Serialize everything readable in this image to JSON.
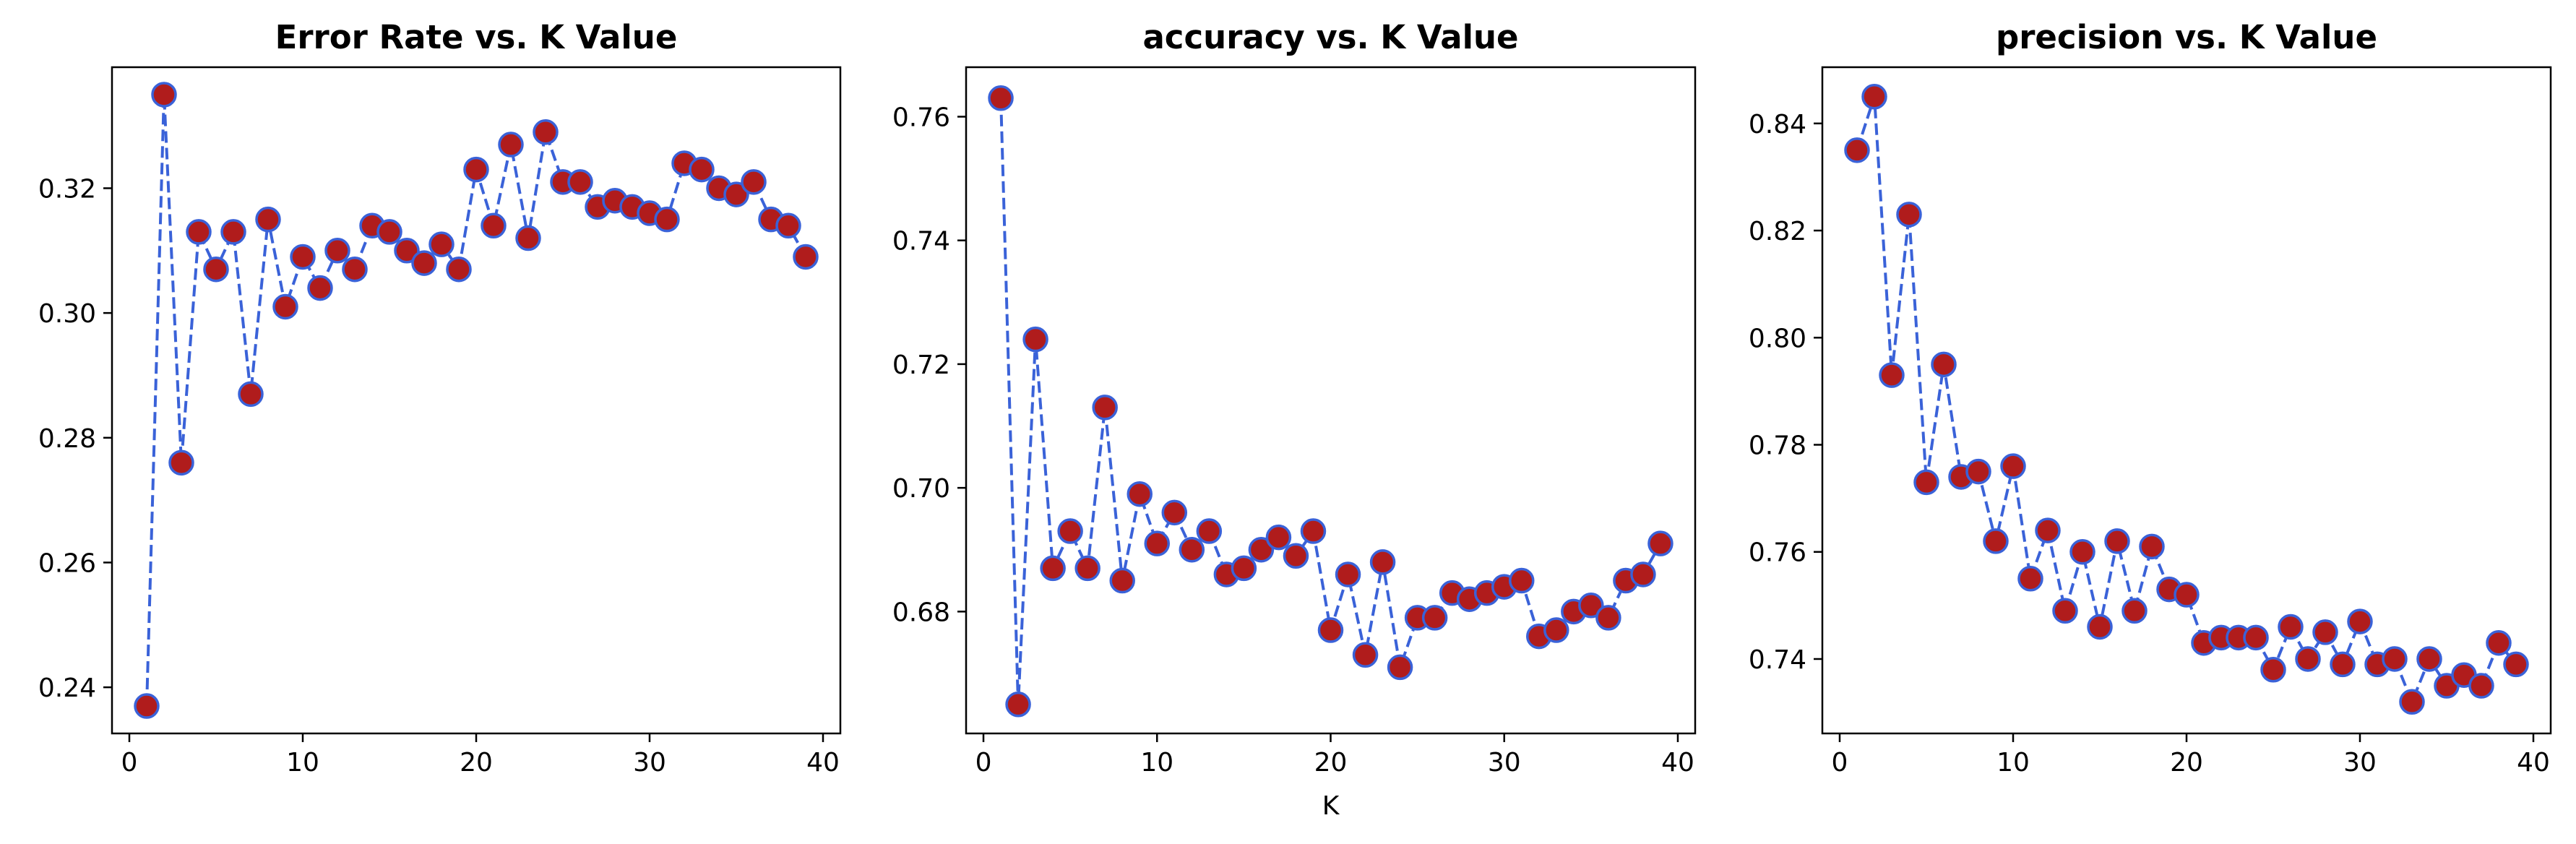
{
  "colors": {
    "line": "#3a62d8",
    "marker_face": "#b01c1c",
    "marker_edge": "#3a62d8"
  },
  "chart_data": [
    {
      "type": "line",
      "title": "Error Rate vs. K Value",
      "xlabel": "",
      "ylabel": "",
      "xlim": [
        -1,
        41
      ],
      "ylim": [
        0.2326,
        0.3394
      ],
      "xticks": [
        0,
        10,
        20,
        30,
        40
      ],
      "yticks": [
        0.24,
        0.26,
        0.28,
        0.3,
        0.32
      ],
      "ytick_labels": [
        "0.24",
        "0.26",
        "0.28",
        "0.30",
        "0.32"
      ],
      "grid": false,
      "x": [
        1,
        2,
        3,
        4,
        5,
        6,
        7,
        8,
        9,
        10,
        11,
        12,
        13,
        14,
        15,
        16,
        17,
        18,
        19,
        20,
        21,
        22,
        23,
        24,
        25,
        26,
        27,
        28,
        29,
        30,
        31,
        32,
        33,
        34,
        35,
        36,
        37,
        38,
        39
      ],
      "series": [
        {
          "values": [
            0.237,
            0.335,
            0.276,
            0.313,
            0.307,
            0.313,
            0.287,
            0.315,
            0.301,
            0.309,
            0.304,
            0.31,
            0.307,
            0.314,
            0.313,
            0.31,
            0.308,
            0.311,
            0.307,
            0.323,
            0.314,
            0.327,
            0.312,
            0.329,
            0.321,
            0.321,
            0.317,
            0.318,
            0.317,
            0.316,
            0.315,
            0.324,
            0.323,
            0.32,
            0.319,
            0.321,
            0.315,
            0.314,
            0.309
          ]
        }
      ]
    },
    {
      "type": "line",
      "title": "accuracy vs. K Value",
      "xlabel": "K",
      "ylabel": "",
      "xlim": [
        -1,
        41
      ],
      "ylim": [
        0.6603,
        0.768
      ],
      "xticks": [
        0,
        10,
        20,
        30,
        40
      ],
      "yticks": [
        0.68,
        0.7,
        0.72,
        0.74,
        0.76
      ],
      "ytick_labels": [
        "0.68",
        "0.70",
        "0.72",
        "0.74",
        "0.76"
      ],
      "grid": false,
      "x": [
        1,
        2,
        3,
        4,
        5,
        6,
        7,
        8,
        9,
        10,
        11,
        12,
        13,
        14,
        15,
        16,
        17,
        18,
        19,
        20,
        21,
        22,
        23,
        24,
        25,
        26,
        27,
        28,
        29,
        30,
        31,
        32,
        33,
        34,
        35,
        36,
        37,
        38,
        39
      ],
      "series": [
        {
          "values": [
            0.763,
            0.665,
            0.724,
            0.687,
            0.693,
            0.687,
            0.713,
            0.685,
            0.699,
            0.691,
            0.696,
            0.69,
            0.693,
            0.686,
            0.687,
            0.69,
            0.692,
            0.689,
            0.693,
            0.677,
            0.686,
            0.673,
            0.688,
            0.671,
            0.679,
            0.679,
            0.683,
            0.682,
            0.683,
            0.684,
            0.685,
            0.676,
            0.677,
            0.68,
            0.681,
            0.679,
            0.685,
            0.686,
            0.691
          ]
        }
      ]
    },
    {
      "type": "line",
      "title": "precision vs. K Value",
      "xlabel": "",
      "ylabel": "",
      "xlim": [
        -1,
        41
      ],
      "ylim": [
        0.7261,
        0.8505
      ],
      "xticks": [
        0,
        10,
        20,
        30,
        40
      ],
      "yticks": [
        0.74,
        0.76,
        0.78,
        0.8,
        0.82,
        0.84
      ],
      "ytick_labels": [
        "0.74",
        "0.76",
        "0.78",
        "0.80",
        "0.82",
        "0.84"
      ],
      "grid": false,
      "x": [
        1,
        2,
        3,
        4,
        5,
        6,
        7,
        8,
        9,
        10,
        11,
        12,
        13,
        14,
        15,
        16,
        17,
        18,
        19,
        20,
        21,
        22,
        23,
        24,
        25,
        26,
        27,
        28,
        29,
        30,
        31,
        32,
        33,
        34,
        35,
        36,
        37,
        38,
        39
      ],
      "series": [
        {
          "values": [
            0.835,
            0.845,
            0.793,
            0.823,
            0.773,
            0.795,
            0.774,
            0.775,
            0.762,
            0.776,
            0.755,
            0.764,
            0.749,
            0.76,
            0.746,
            0.762,
            0.749,
            0.761,
            0.753,
            0.752,
            0.743,
            0.744,
            0.744,
            0.744,
            0.738,
            0.746,
            0.74,
            0.745,
            0.739,
            0.747,
            0.739,
            0.74,
            0.732,
            0.74,
            0.735,
            0.737,
            0.735,
            0.743,
            0.739
          ]
        }
      ]
    }
  ]
}
